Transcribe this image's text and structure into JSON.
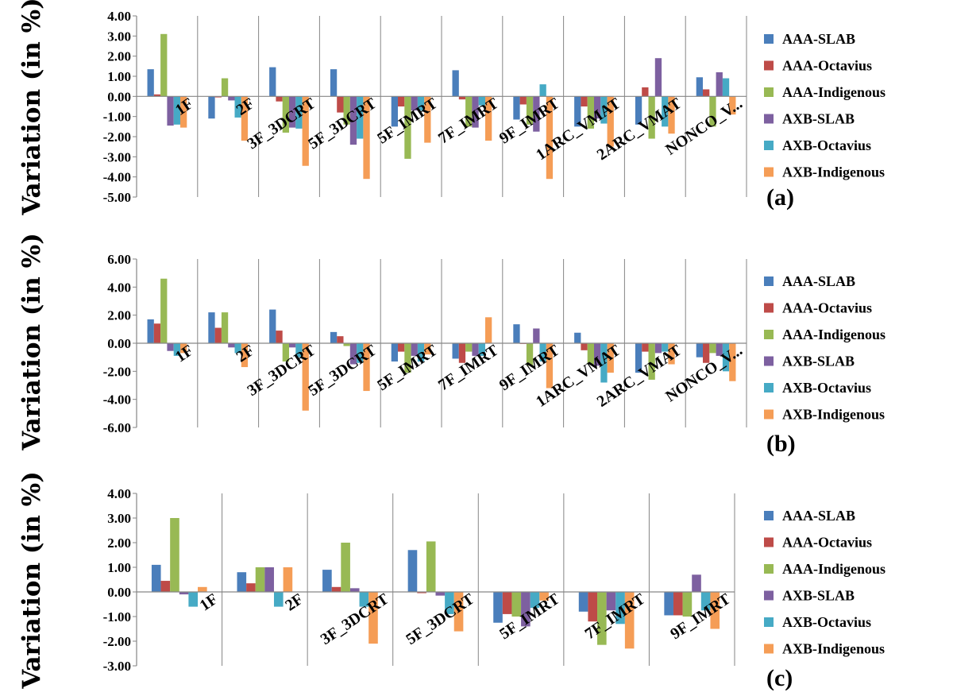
{
  "colors": {
    "AAA-SLAB": "#4a7ebb",
    "AAA-Octavius": "#be4b48",
    "AAA-Indigenous": "#98b954",
    "AXB-SLAB": "#7d60a0",
    "AXB-Octavius": "#46aac5",
    "AXB-Indigenous": "#f59d56"
  },
  "chart_data": [
    {
      "type": "bar",
      "panel_label": "(a)",
      "ylabel": "Variation (in %)",
      "ylim": [
        -5,
        4
      ],
      "yticks": [
        "4.00",
        "3.00",
        "2.00",
        "1.00",
        "0.00",
        "-1.00",
        "-2.00",
        "-3.00",
        "-4.00",
        "-5.00"
      ],
      "categories": [
        "1F",
        "2F",
        "3F_3DCRT",
        "5F_3DCRT",
        "5F_IMRT",
        "7F_IMRT",
        "9F_IMRT",
        "1ARC_VMAT",
        "2ARC_VMAT",
        "NONCO_V..."
      ],
      "legend": "right",
      "series": [
        {
          "name": "AAA-SLAB",
          "values": [
            1.35,
            -1.1,
            1.45,
            1.35,
            -1.5,
            1.3,
            -1.15,
            -1.5,
            -1.4,
            0.95
          ]
        },
        {
          "name": "AAA-Octavius",
          "values": [
            0.1,
            -0.05,
            -0.25,
            -0.8,
            -0.5,
            -0.15,
            -0.4,
            -0.5,
            0.45,
            0.35
          ]
        },
        {
          "name": "AAA-Indigenous",
          "values": [
            3.1,
            0.9,
            -1.8,
            -1.4,
            -3.1,
            -1.5,
            -1.4,
            -1.6,
            -2.1,
            -1.5
          ]
        },
        {
          "name": "AXB-SLAB",
          "values": [
            -1.45,
            -0.2,
            -1.55,
            -2.4,
            -0.7,
            -1.55,
            -1.75,
            -1.1,
            1.9,
            1.2
          ]
        },
        {
          "name": "AXB-Octavius",
          "values": [
            -1.4,
            -1.05,
            -1.6,
            -2.1,
            -0.7,
            -0.45,
            0.6,
            -1.35,
            -1.5,
            0.9
          ]
        },
        {
          "name": "AXB-Indigenous",
          "values": [
            -1.55,
            -2.2,
            -3.45,
            -4.1,
            -2.3,
            -2.2,
            -4.1,
            -2.5,
            -1.85,
            -0.9
          ]
        }
      ]
    },
    {
      "type": "bar",
      "panel_label": "(b)",
      "ylabel": "Variation (in %)",
      "ylim": [
        -6,
        6
      ],
      "yticks": [
        "6.00",
        "4.00",
        "2.00",
        "0.00",
        "-2.00",
        "-4.00",
        "-6.00"
      ],
      "categories": [
        "1F",
        "2F",
        "3F_3DCRT",
        "5F_3DCRT",
        "5F_IMRT",
        "7F_IMRT",
        "9F_IMRT",
        "1ARC_VMAT",
        "2ARC_VMAT",
        "NONCO_V..."
      ],
      "legend": "right",
      "series": [
        {
          "name": "AAA-SLAB",
          "values": [
            1.7,
            2.2,
            2.4,
            0.8,
            -1.3,
            -1.1,
            1.35,
            0.75,
            -2.1,
            -1.0
          ]
        },
        {
          "name": "AAA-Octavius",
          "values": [
            1.4,
            1.1,
            0.9,
            0.5,
            -0.6,
            -1.4,
            -0.05,
            -0.5,
            -0.6,
            -1.4
          ]
        },
        {
          "name": "AAA-Indigenous",
          "values": [
            4.6,
            2.2,
            -1.3,
            -0.2,
            -2.1,
            -0.6,
            -1.6,
            -1.5,
            -2.6,
            -0.7
          ]
        },
        {
          "name": "AXB-SLAB",
          "values": [
            -0.55,
            -0.3,
            -0.3,
            -1.5,
            -0.9,
            -0.9,
            1.05,
            -1.6,
            -0.7,
            -0.9
          ]
        },
        {
          "name": "AXB-Octavius",
          "values": [
            -0.9,
            -0.7,
            -1.0,
            -1.4,
            -1.3,
            -0.9,
            -1.3,
            -2.8,
            -0.6,
            -2.0
          ]
        },
        {
          "name": "AXB-Indigenous",
          "values": [
            -0.7,
            -1.7,
            -4.8,
            -3.4,
            -0.8,
            1.85,
            -3.2,
            -2.1,
            -1.5,
            -2.7
          ]
        }
      ]
    },
    {
      "type": "bar",
      "panel_label": "(c)",
      "ylabel": "Variation (in %)",
      "ylim": [
        -3,
        4
      ],
      "yticks": [
        "4.00",
        "3.00",
        "2.00",
        "1.00",
        "0.00",
        "-1.00",
        "-2.00",
        "-3.00"
      ],
      "categories": [
        "1F",
        "2F",
        "3F_3DCRT",
        "5F_3DCRT",
        "5F_IMRT",
        "7F_IMRT",
        "9F_IMRT"
      ],
      "legend": "right",
      "series": [
        {
          "name": "AAA-SLAB",
          "values": [
            1.1,
            0.8,
            0.9,
            1.7,
            -1.25,
            -0.8,
            -0.95
          ]
        },
        {
          "name": "AAA-Octavius",
          "values": [
            0.45,
            0.35,
            0.2,
            -0.05,
            -0.9,
            -1.2,
            -0.95
          ]
        },
        {
          "name": "AAA-Indigenous",
          "values": [
            3.0,
            1.0,
            2.0,
            2.05,
            -1.0,
            -2.15,
            -1.0
          ]
        },
        {
          "name": "AXB-SLAB",
          "values": [
            -0.1,
            1.0,
            0.15,
            -0.15,
            -1.4,
            -0.75,
            0.7
          ]
        },
        {
          "name": "AXB-Octavius",
          "values": [
            -0.6,
            -0.6,
            -0.6,
            -0.9,
            -0.65,
            -1.3,
            -0.75
          ]
        },
        {
          "name": "AXB-Indigenous",
          "values": [
            0.2,
            1.0,
            -2.1,
            -1.6,
            -0.35,
            -2.3,
            -1.5
          ]
        }
      ]
    }
  ]
}
